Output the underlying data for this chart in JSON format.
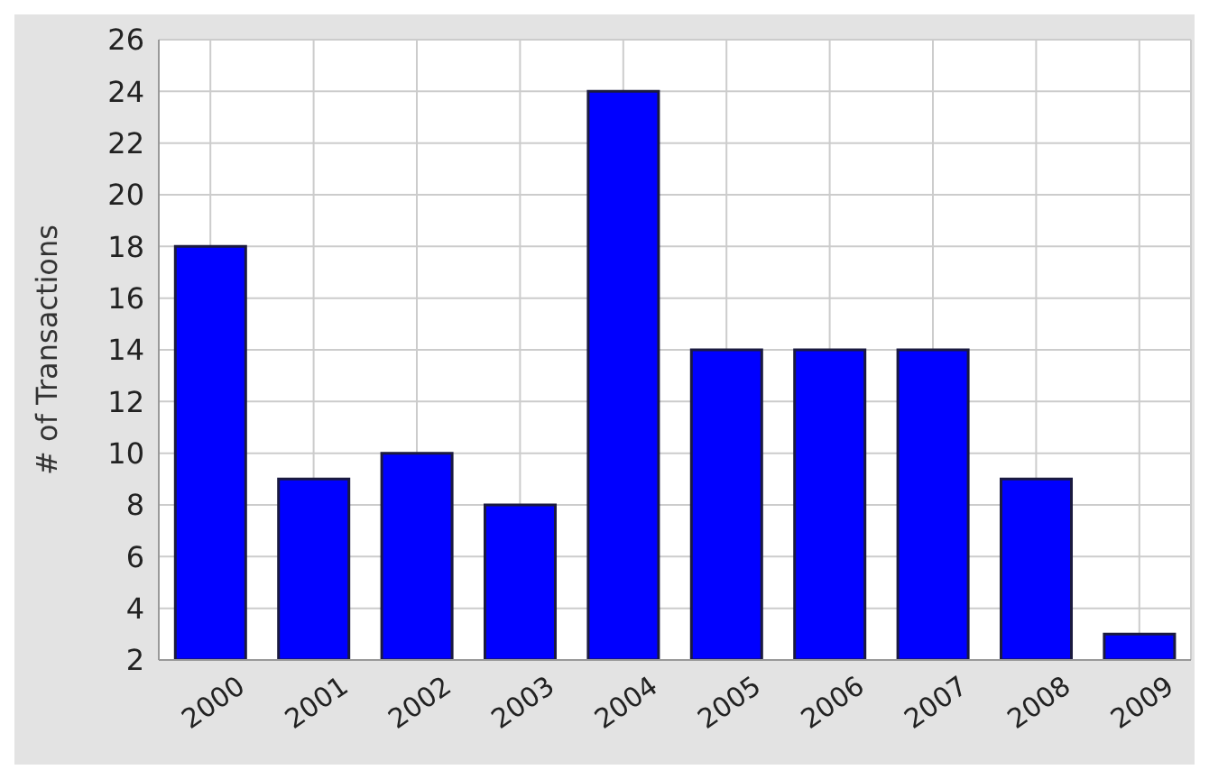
{
  "chart_data": {
    "type": "bar",
    "ylabel": "# of Transactions",
    "categories": [
      "2000",
      "2001",
      "2002",
      "2003",
      "2004",
      "2005",
      "2006",
      "2007",
      "2008",
      "2009"
    ],
    "values": [
      18,
      9,
      10,
      8,
      24,
      14,
      14,
      14,
      9,
      3
    ],
    "color": "#0000ff",
    "ylim": [
      2,
      26
    ],
    "yticks": [
      2,
      4,
      6,
      8,
      10,
      12,
      14,
      16,
      18,
      20,
      22,
      24,
      26
    ],
    "grid": true
  }
}
